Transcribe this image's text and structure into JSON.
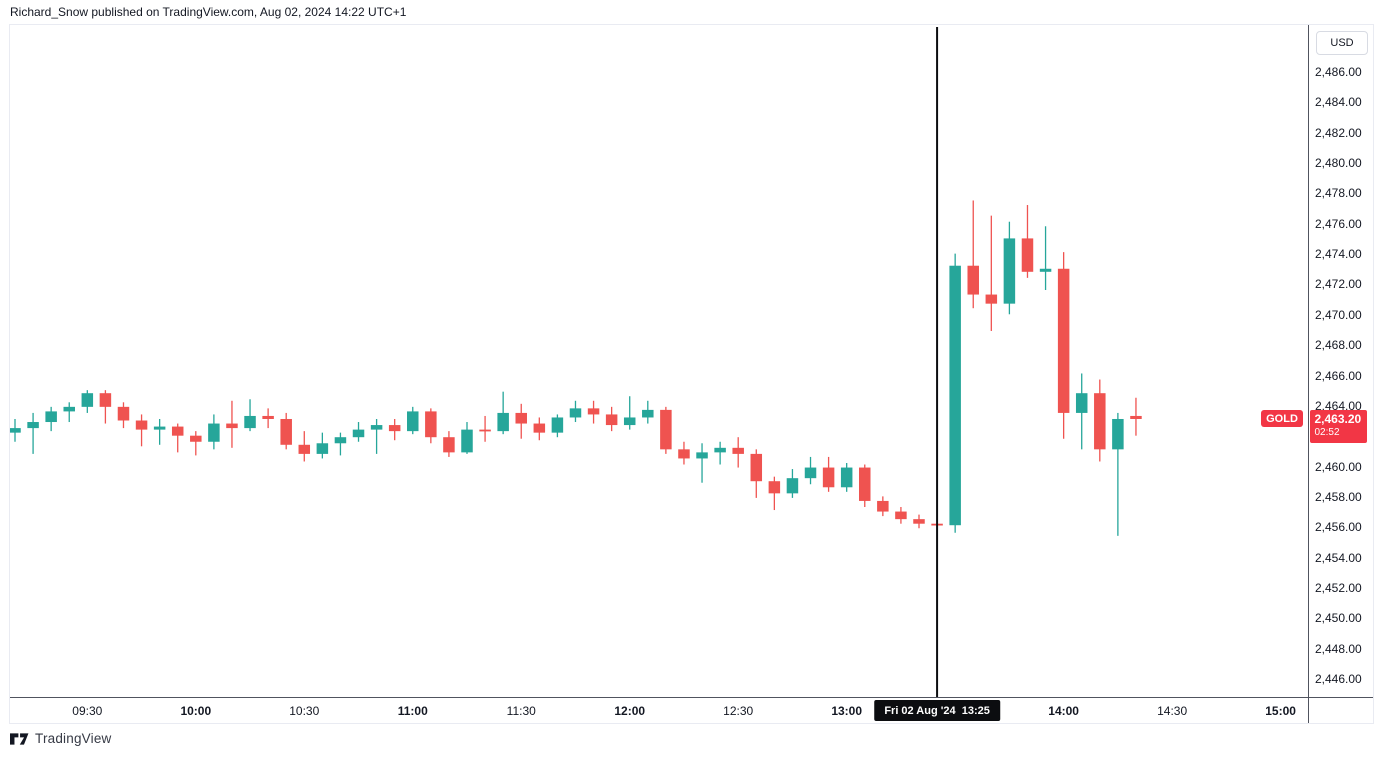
{
  "header": {
    "attribution": "Richard_Snow published on TradingView.com, Aug 02, 2024 14:22 UTC+1"
  },
  "symbol": {
    "name": "GOLD",
    "last_price": "2,463.20",
    "last_price_value": 2463.2,
    "countdown": "02:52"
  },
  "price_axis": {
    "currency_label": "USD",
    "max": 2486,
    "min": 2446,
    "step": 2,
    "ticks": [
      "2,486.00",
      "2,484.00",
      "2,482.00",
      "2,480.00",
      "2,478.00",
      "2,476.00",
      "2,474.00",
      "2,472.00",
      "2,470.00",
      "2,468.00",
      "2,466.00",
      "2,464.00",
      "2,462.00",
      "2,460.00",
      "2,458.00",
      "2,456.00",
      "2,454.00",
      "2,452.00",
      "2,450.00",
      "2,448.00",
      "2,446.00"
    ]
  },
  "time_axis": {
    "ticks": [
      {
        "label": "09:30",
        "bold": false
      },
      {
        "label": "10:00",
        "bold": true
      },
      {
        "label": "10:30",
        "bold": false
      },
      {
        "label": "11:00",
        "bold": true
      },
      {
        "label": "11:30",
        "bold": false
      },
      {
        "label": "12:00",
        "bold": true
      },
      {
        "label": "12:30",
        "bold": false
      },
      {
        "label": "13:00",
        "bold": true
      },
      {
        "label": "14:00",
        "bold": true
      },
      {
        "label": "14:30",
        "bold": false
      },
      {
        "label": "15:00",
        "bold": true
      }
    ],
    "event": {
      "label": "Fri 02 Aug '24  13:25",
      "time": "13:25"
    }
  },
  "footer": {
    "brand": "TradingView"
  },
  "colors": {
    "up": "#26a69a",
    "down": "#ef5350",
    "price_label_bg": "#f23645",
    "event_line": "#0c0d10",
    "text": "#131722",
    "axis_separator": "#50535e",
    "frame_border": "#e9ebf2"
  },
  "chart_data": {
    "type": "candlestick",
    "symbol": "GOLD",
    "currency": "USD",
    "interval": "5 minutes",
    "session_date": "Fri 02 Aug '24",
    "event_marker_time": "13:25",
    "price_axis_range": [
      2446,
      2486
    ],
    "grid": false,
    "columns": [
      "time",
      "open",
      "high",
      "low",
      "close"
    ],
    "candles": [
      [
        "09:10",
        2462.3,
        2463.2,
        2461.7,
        2462.6
      ],
      [
        "09:15",
        2462.6,
        2463.6,
        2460.9,
        2463.0
      ],
      [
        "09:20",
        2463.0,
        2464.0,
        2462.4,
        2463.7
      ],
      [
        "09:25",
        2463.7,
        2464.3,
        2463.0,
        2464.0
      ],
      [
        "09:30",
        2464.0,
        2465.1,
        2463.6,
        2464.9
      ],
      [
        "09:35",
        2464.9,
        2465.1,
        2462.9,
        2464.0
      ],
      [
        "09:40",
        2464.0,
        2464.3,
        2462.6,
        2463.1
      ],
      [
        "09:45",
        2463.1,
        2463.5,
        2461.4,
        2462.5
      ],
      [
        "09:50",
        2462.5,
        2463.2,
        2461.5,
        2462.7
      ],
      [
        "09:55",
        2462.7,
        2462.9,
        2461.0,
        2462.1
      ],
      [
        "10:00",
        2462.1,
        2462.4,
        2460.8,
        2461.7
      ],
      [
        "10:05",
        2461.7,
        2463.5,
        2461.2,
        2462.9
      ],
      [
        "10:10",
        2462.9,
        2464.4,
        2461.3,
        2462.6
      ],
      [
        "10:15",
        2462.6,
        2464.5,
        2462.4,
        2463.4
      ],
      [
        "10:20",
        2463.4,
        2463.9,
        2462.6,
        2463.2
      ],
      [
        "10:25",
        2463.2,
        2463.6,
        2461.2,
        2461.5
      ],
      [
        "10:30",
        2461.5,
        2462.4,
        2460.4,
        2460.9
      ],
      [
        "10:35",
        2460.9,
        2462.3,
        2460.6,
        2461.6
      ],
      [
        "10:40",
        2461.6,
        2462.3,
        2460.8,
        2462.0
      ],
      [
        "10:45",
        2462.0,
        2463.0,
        2461.7,
        2462.5
      ],
      [
        "10:50",
        2462.5,
        2463.2,
        2460.9,
        2462.8
      ],
      [
        "10:55",
        2462.8,
        2463.2,
        2461.8,
        2462.4
      ],
      [
        "11:00",
        2462.4,
        2464.0,
        2462.2,
        2463.7
      ],
      [
        "11:05",
        2463.7,
        2463.9,
        2461.6,
        2462.0
      ],
      [
        "11:10",
        2462.0,
        2462.4,
        2460.7,
        2461.0
      ],
      [
        "11:15",
        2461.0,
        2463.0,
        2460.9,
        2462.5
      ],
      [
        "11:20",
        2462.5,
        2463.4,
        2461.7,
        2462.4
      ],
      [
        "11:25",
        2462.4,
        2465.0,
        2462.2,
        2463.6
      ],
      [
        "11:30",
        2463.6,
        2464.2,
        2461.9,
        2462.9
      ],
      [
        "11:35",
        2462.9,
        2463.3,
        2461.8,
        2462.3
      ],
      [
        "11:40",
        2462.3,
        2463.5,
        2462.0,
        2463.3
      ],
      [
        "11:45",
        2463.3,
        2464.4,
        2463.0,
        2463.9
      ],
      [
        "11:50",
        2463.9,
        2464.4,
        2462.9,
        2463.5
      ],
      [
        "11:55",
        2463.5,
        2464.0,
        2462.4,
        2462.8
      ],
      [
        "12:00",
        2462.8,
        2464.7,
        2462.5,
        2463.3
      ],
      [
        "12:05",
        2463.3,
        2464.4,
        2462.9,
        2463.8
      ],
      [
        "12:10",
        2463.8,
        2464.0,
        2460.9,
        2461.2
      ],
      [
        "12:15",
        2461.2,
        2461.7,
        2460.2,
        2460.6
      ],
      [
        "12:20",
        2460.6,
        2461.6,
        2459.0,
        2461.0
      ],
      [
        "12:25",
        2461.0,
        2461.7,
        2460.2,
        2461.3
      ],
      [
        "12:30",
        2461.3,
        2462.0,
        2460.0,
        2460.9
      ],
      [
        "12:35",
        2460.9,
        2461.2,
        2458.0,
        2459.1
      ],
      [
        "12:40",
        2459.1,
        2459.4,
        2457.2,
        2458.3
      ],
      [
        "12:45",
        2458.3,
        2459.9,
        2458.0,
        2459.3
      ],
      [
        "12:50",
        2459.3,
        2460.7,
        2458.9,
        2460.0
      ],
      [
        "12:55",
        2460.0,
        2460.7,
        2458.4,
        2458.7
      ],
      [
        "13:00",
        2458.7,
        2460.3,
        2458.4,
        2460.0
      ],
      [
        "13:05",
        2460.0,
        2460.2,
        2457.4,
        2457.8
      ],
      [
        "13:10",
        2457.8,
        2458.1,
        2456.8,
        2457.1
      ],
      [
        "13:15",
        2457.1,
        2457.4,
        2456.3,
        2456.6
      ],
      [
        "13:20",
        2456.6,
        2456.9,
        2456.0,
        2456.3
      ],
      [
        "13:25",
        2456.3,
        2456.7,
        2455.9,
        2456.2
      ],
      [
        "13:30",
        2456.2,
        2474.1,
        2455.7,
        2473.3
      ],
      [
        "13:35",
        2473.3,
        2477.6,
        2470.5,
        2471.4
      ],
      [
        "13:40",
        2471.4,
        2476.6,
        2469.0,
        2470.8
      ],
      [
        "13:45",
        2470.8,
        2476.2,
        2470.1,
        2475.1
      ],
      [
        "13:50",
        2475.1,
        2477.3,
        2472.5,
        2472.9
      ],
      [
        "13:55",
        2472.9,
        2475.9,
        2471.7,
        2473.1
      ],
      [
        "14:00",
        2473.1,
        2474.2,
        2461.9,
        2463.6
      ],
      [
        "14:05",
        2463.6,
        2466.2,
        2461.2,
        2464.9
      ],
      [
        "14:10",
        2464.9,
        2465.8,
        2460.4,
        2461.2
      ],
      [
        "14:15",
        2461.2,
        2463.6,
        2455.5,
        2463.2
      ],
      [
        "14:20",
        2463.4,
        2464.6,
        2462.1,
        2463.2
      ]
    ]
  }
}
